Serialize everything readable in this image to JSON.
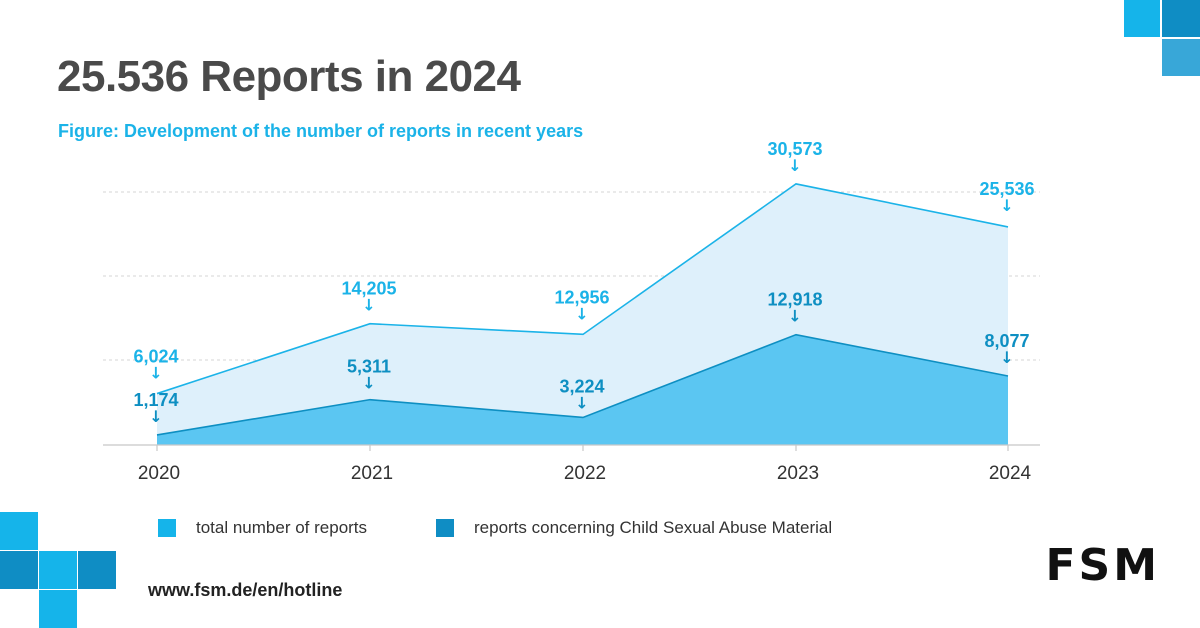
{
  "header": {
    "title": "25.536 Reports in 2024",
    "subtitle": "Figure: Development of the number of reports in recent years"
  },
  "colors": {
    "total_line": "#1bb3e8",
    "total_fill": "#def0fb",
    "csam_line": "#0e8fc2",
    "csam_fill": "#5bc6f2",
    "label_total": "#1bb3e8",
    "label_csam": "#0e8fc2",
    "deco_light": "#15b4ea",
    "deco_dark": "#0f8dc4",
    "deco_mid": "#38a7d8"
  },
  "chart_data": {
    "type": "area",
    "title": "Development of the number of reports in recent years",
    "categories": [
      "2020",
      "2021",
      "2022",
      "2023",
      "2024"
    ],
    "series": [
      {
        "name": "total number of reports",
        "values": [
          6024,
          14205,
          12956,
          30573,
          25536
        ],
        "labels": [
          "6,024",
          "14,205",
          "12,956",
          "30,573",
          "25,536"
        ]
      },
      {
        "name": "reports concerning Child Sexual Abuse Material",
        "values": [
          1174,
          5311,
          3224,
          12918,
          8077
        ],
        "labels": [
          "1,174",
          "5,311",
          "3,224",
          "12,918",
          "8,077"
        ]
      }
    ],
    "ylim": [
      0,
      31000
    ],
    "grid": true,
    "xlabel": "",
    "ylabel": "",
    "legend_position": "bottom"
  },
  "legend": [
    {
      "label": "total number of reports"
    },
    {
      "label": "reports concerning Child Sexual Abuse Material"
    }
  ],
  "footer": {
    "url": "www.fsm.de/en/hotline",
    "logo_text": "FSM"
  }
}
